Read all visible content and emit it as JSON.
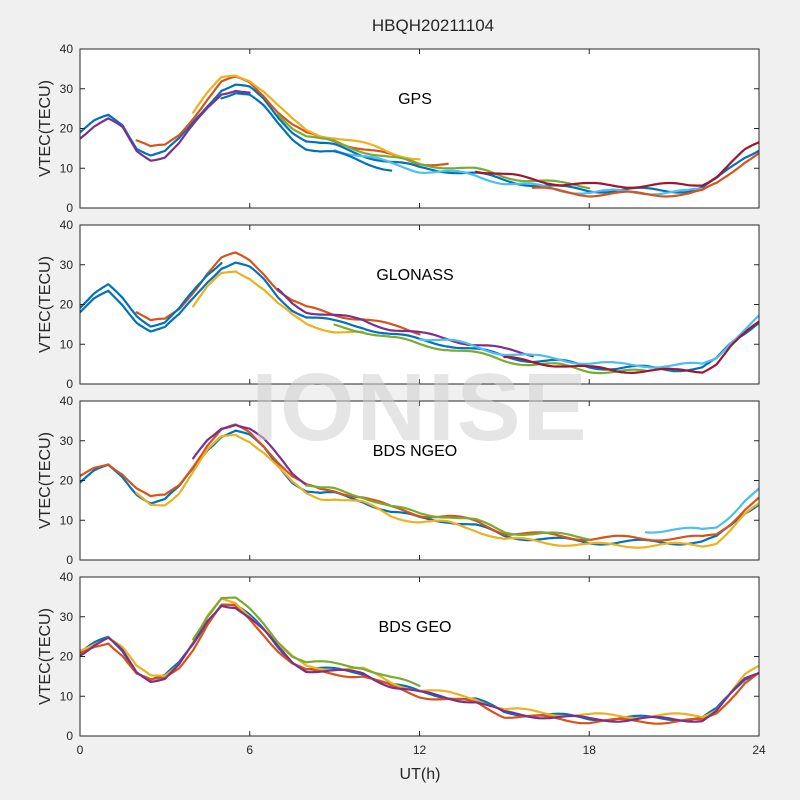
{
  "chart_data": {
    "type": "line",
    "title": "HBQH20211104",
    "watermark": "IONISE",
    "xlabel": "UT(h)",
    "xlim": [
      0,
      24
    ],
    "xticks": [
      "0",
      "6",
      "12",
      "18",
      "24"
    ],
    "colors": [
      "#0072BD",
      "#D95319",
      "#EDB120",
      "#7E2F8E",
      "#77AC30",
      "#4DBEEE",
      "#A2142F"
    ],
    "panels": [
      {
        "label": "GPS",
        "ylabel": "VTEC(TECU)",
        "ylim": [
          0,
          40
        ],
        "yticks": [
          "0",
          "10",
          "20",
          "30",
          "40"
        ],
        "reference_curve": {
          "x": [
            0,
            0.5,
            1,
            1.5,
            2,
            2.5,
            3,
            3.5,
            4,
            4.5,
            5,
            5.5,
            6,
            6.5,
            7,
            7.5,
            8,
            8.5,
            9,
            10,
            11,
            12,
            13,
            14,
            15,
            16,
            17,
            18,
            19,
            20,
            21,
            21.5,
            22,
            22.5,
            23,
            23.5,
            24
          ],
          "y": [
            19,
            21.5,
            23,
            21,
            15.5,
            13.5,
            14,
            17,
            21.5,
            26,
            30,
            31,
            30,
            27,
            23,
            19.5,
            17,
            16,
            15.5,
            13.5,
            11.5,
            10,
            9.5,
            8.5,
            7,
            6,
            5,
            4.5,
            4.5,
            4.5,
            4.5,
            4.5,
            5,
            7,
            10,
            13,
            15
          ]
        },
        "series": [
          {
            "x": [
              0,
              24
            ],
            "y_offset": 0
          },
          {
            "x": [
              2,
              13
            ],
            "y_offset": 1.5
          },
          {
            "x": [
              4,
              12
            ],
            "y_offset": 2.5
          },
          {
            "x": [
              0,
              6
            ],
            "y_offset": -1
          },
          {
            "x": [
              7,
              18
            ],
            "y_offset": 1
          },
          {
            "x": [
              9,
              22
            ],
            "y_offset": -0.5
          },
          {
            "x": [
              14,
              24
            ],
            "y_offset": 1.2
          },
          {
            "x": [
              5,
              11
            ],
            "y_offset": -1.8
          },
          {
            "x": [
              16,
              24
            ],
            "y_offset": -1
          }
        ]
      },
      {
        "label": "GLONASS",
        "ylabel": "VTEC(TECU)",
        "ylim": [
          0,
          40
        ],
        "yticks": [
          "0",
          "10",
          "20",
          "30",
          "40"
        ],
        "reference_curve": {
          "x": [
            0,
            0.5,
            1,
            1.5,
            2,
            2.5,
            3,
            3.5,
            4,
            4.5,
            5,
            5.5,
            6,
            6.5,
            7,
            7.5,
            8,
            9,
            10,
            11,
            12,
            13,
            14,
            15,
            16,
            17,
            18,
            19,
            20,
            21,
            22,
            22.5,
            23,
            23.5,
            24
          ],
          "y": [
            18,
            21,
            23,
            20,
            16,
            13.5,
            14,
            17,
            21.5,
            26,
            29.5,
            30.5,
            29,
            26,
            22,
            19,
            17,
            15.5,
            14.5,
            12.5,
            11,
            10,
            8.5,
            7,
            6,
            5.5,
            4.5,
            4,
            4,
            3.8,
            4,
            6,
            10,
            13,
            16
          ]
        },
        "series": [
          {
            "x": [
              0,
              24
            ],
            "y_offset": 0
          },
          {
            "x": [
              2,
              12
            ],
            "y_offset": 2
          },
          {
            "x": [
              4,
              10
            ],
            "y_offset": -2
          },
          {
            "x": [
              7,
              16
            ],
            "y_offset": 1.5
          },
          {
            "x": [
              9,
              20
            ],
            "y_offset": -1
          },
          {
            "x": [
              12,
              24
            ],
            "y_offset": 0.8
          },
          {
            "x": [
              15,
              24
            ],
            "y_offset": -0.6
          },
          {
            "x": [
              0,
              5
            ],
            "y_offset": 1.5
          }
        ]
      },
      {
        "label": "BDS NGEO",
        "ylabel": "VTEC(TECU)",
        "ylim": [
          0,
          40
        ],
        "yticks": [
          "0",
          "10",
          "20",
          "30",
          "40"
        ],
        "reference_curve": {
          "x": [
            0,
            0.5,
            1,
            1.5,
            2,
            2.5,
            3,
            3.5,
            4,
            4.5,
            5,
            5.5,
            6,
            6.5,
            7,
            7.5,
            8,
            8.5,
            9,
            10,
            11,
            12,
            13,
            14,
            15,
            16,
            17,
            18,
            19,
            20,
            21,
            22,
            22.5,
            23,
            23.5,
            24
          ],
          "y": [
            19.5,
            22,
            23.5,
            21,
            17,
            14.5,
            15,
            18,
            23,
            28,
            31.5,
            32.5,
            31,
            28,
            24,
            20,
            17.5,
            16.5,
            16.5,
            15,
            12,
            10.5,
            10,
            8.5,
            6,
            5.5,
            5,
            4.5,
            4.5,
            4.5,
            4.5,
            4.5,
            5.5,
            8.5,
            12,
            14.5
          ]
        },
        "series": [
          {
            "x": [
              0,
              24
            ],
            "y_offset": 0
          },
          {
            "x": [
              0,
              24
            ],
            "y_offset": 1
          },
          {
            "x": [
              2,
              24
            ],
            "y_offset": -0.8
          },
          {
            "x": [
              4,
              8
            ],
            "y_offset": 2
          },
          {
            "x": [
              8,
              18
            ],
            "y_offset": 1.2
          },
          {
            "x": [
              20,
              24
            ],
            "y_offset": 3
          }
        ]
      },
      {
        "label": "BDS GEO",
        "ylabel": "VTEC(TECU)",
        "ylim": [
          0,
          40
        ],
        "yticks": [
          "0",
          "10",
          "20",
          "30",
          "40"
        ],
        "reference_curve": {
          "x": [
            0,
            0.5,
            1,
            1.5,
            2,
            2.5,
            3,
            3.5,
            4,
            4.5,
            5,
            5.5,
            6,
            6.5,
            7,
            7.5,
            8,
            9,
            10,
            11,
            12,
            13,
            14,
            15,
            16,
            17,
            18,
            19,
            20,
            21,
            22,
            22.5,
            23,
            23.5,
            24
          ],
          "y": [
            21,
            23,
            24.5,
            21.5,
            16.5,
            14.5,
            15,
            18,
            23,
            29,
            33.5,
            33,
            30,
            26.5,
            22.5,
            19,
            17,
            16.5,
            16,
            13,
            11,
            10,
            9,
            6,
            5.5,
            5,
            4.5,
            4.5,
            4.5,
            4.5,
            4.5,
            6.5,
            10.5,
            14.5,
            16.5
          ]
        },
        "series": [
          {
            "x": [
              0,
              24
            ],
            "y_offset": 0
          },
          {
            "x": [
              0,
              24
            ],
            "y_offset": -0.8
          },
          {
            "x": [
              0,
              24
            ],
            "y_offset": 0.6
          },
          {
            "x": [
              0,
              24
            ],
            "y_offset": -0.3
          },
          {
            "x": [
              4,
              12
            ],
            "y_offset": 1.5
          }
        ]
      }
    ]
  }
}
